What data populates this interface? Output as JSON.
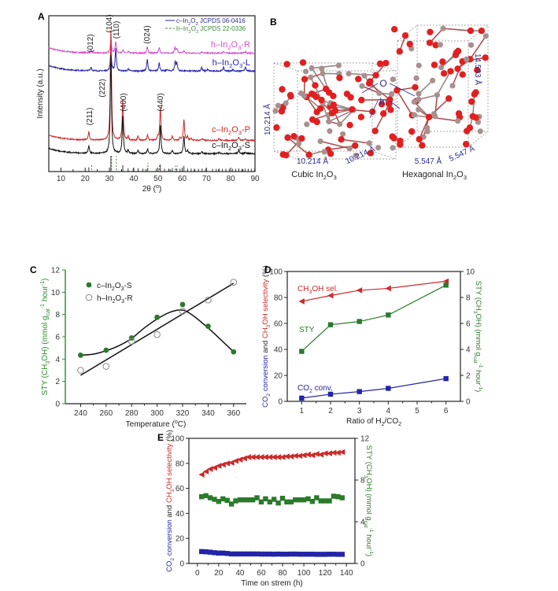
{
  "chart_data": [
    {
      "panel": "A",
      "type": "line",
      "xlabel": "2θ (^{o})",
      "ylabel": "Intensity (a.u.)",
      "xlim": [
        5,
        90
      ],
      "xticks": [
        10,
        20,
        30,
        40,
        50,
        60,
        70,
        80,
        90
      ],
      "legend": {
        "position": "top-right",
        "entries": [
          {
            "label": "c–In_{2}O_{3} JCPDS 06-0416",
            "style": "solid",
            "color": "#2b2b8f"
          },
          {
            "label": "h–In_{2}O_{3} JCPDS 22-0336",
            "style": "dashed",
            "color": "#3a8a3a"
          }
        ]
      },
      "series": [
        {
          "name": "h–In_{2}O_{3}-R",
          "color": "#d24fd2",
          "offset": 7.6,
          "peaks": [
            [
              22.4,
              0.15
            ],
            [
              30.6,
              0.9
            ],
            [
              32.6,
              0.75
            ],
            [
              35.5,
              0.2
            ],
            [
              37.8,
              0.1
            ],
            [
              45.6,
              0.4
            ],
            [
              50.5,
              0.35
            ],
            [
              57.0,
              0.35
            ],
            [
              57.8,
              0.3
            ],
            [
              60.7,
              0.15
            ],
            [
              68.2,
              0.1
            ],
            [
              77.0,
              0.12
            ],
            [
              86.0,
              0.1
            ]
          ]
        },
        {
          "name": "h–In_{2}O_{3}-L",
          "color": "#2424a8",
          "offset": 6.45,
          "peaks": [
            [
              22.4,
              0.25
            ],
            [
              30.6,
              1.3
            ],
            [
              32.6,
              1.45
            ],
            [
              37.8,
              0.15
            ],
            [
              45.6,
              0.75
            ],
            [
              50.5,
              0.55
            ],
            [
              53.8,
              0.1
            ],
            [
              57.1,
              0.6
            ],
            [
              57.8,
              0.5
            ],
            [
              68.0,
              0.25
            ],
            [
              70.5,
              0.1
            ],
            [
              77.0,
              0.25
            ],
            [
              80.8,
              0.1
            ],
            [
              86.0,
              0.25
            ]
          ]
        },
        {
          "name": "c–In_{2}O_{3}-P",
          "color": "#cc2a2a",
          "offset": 2.0,
          "peaks": [
            [
              21.5,
              0.55
            ],
            [
              30.6,
              7.2
            ],
            [
              35.5,
              2.55
            ],
            [
              37.7,
              0.25
            ],
            [
              41.8,
              0.25
            ],
            [
              45.7,
              0.35
            ],
            [
              49.9,
              0.2
            ],
            [
              51.0,
              2.2
            ],
            [
              55.9,
              0.25
            ],
            [
              59.1,
              0.15
            ],
            [
              60.7,
              1.35
            ],
            [
              62.2,
              0.25
            ],
            [
              63.7,
              0.15
            ],
            [
              68.2,
              0.12
            ],
            [
              75.2,
              0.12
            ],
            [
              83.3,
              0.2
            ],
            [
              86.0,
              0.1
            ]
          ]
        },
        {
          "name": "c–In_{2}O_{3}-S",
          "color": "#111111",
          "offset": 1.15,
          "peaks": [
            [
              21.5,
              0.5
            ],
            [
              30.6,
              6.5
            ],
            [
              35.5,
              2.4
            ],
            [
              37.7,
              0.2
            ],
            [
              41.8,
              0.2
            ],
            [
              45.7,
              0.3
            ],
            [
              51.0,
              1.9
            ],
            [
              55.9,
              0.2
            ],
            [
              60.7,
              1.15
            ],
            [
              62.2,
              0.2
            ],
            [
              68.2,
              0.1
            ],
            [
              75.2,
              0.1
            ],
            [
              83.3,
              0.25
            ],
            [
              86.0,
              0.1
            ]
          ]
        }
      ],
      "reference_cubic": [
        21.5,
        30.6,
        35.5,
        37.7,
        39.8,
        41.8,
        43.8,
        45.7,
        49.3,
        51.0,
        52.7,
        54.4,
        55.9,
        57.6,
        59.1,
        60.7,
        62.2,
        63.7,
        65.2,
        66.7,
        68.2,
        69.6,
        72.5,
        74.0,
        75.2,
        76.6,
        78.0,
        79.4,
        80.8,
        82.1,
        83.3,
        84.6,
        85.9,
        87.2,
        88.5,
        89.8
      ],
      "reference_cubic_intensity": [
        0.14,
        1,
        0.3,
        0.06,
        0.05,
        0.08,
        0.05,
        0.1,
        0.04,
        0.35,
        0.04,
        0.05,
        0.08,
        0.03,
        0.04,
        0.25,
        0.05,
        0.05,
        0.03,
        0.03,
        0.05,
        0.03,
        0.03,
        0.03,
        0.05,
        0.03,
        0.03,
        0.03,
        0.03,
        0.03,
        0.06,
        0.03,
        0.04,
        0.03,
        0.03,
        0.03
      ],
      "reference_hexagonal": [
        22.4,
        30.6,
        32.6,
        45.6,
        50.3,
        56.9,
        57.6
      ],
      "reference_hexagonal_intensity": [
        0.25,
        0.9,
        0.85,
        0.35,
        0.3,
        0.15,
        0.15
      ],
      "peak_labels": [
        {
          "text": "(012)",
          "x": 22.4,
          "phase": "h"
        },
        {
          "text": "(104)",
          "x": 30.6,
          "phase": "h"
        },
        {
          "text": "(110)",
          "x": 32.6,
          "phase": "h"
        },
        {
          "text": "(024)",
          "x": 45.6,
          "phase": "h"
        },
        {
          "text": "(211)",
          "x": 21.5,
          "phase": "c"
        },
        {
          "text": "(222)",
          "x": 30.6,
          "phase": "c"
        },
        {
          "text": "(400)",
          "x": 35.5,
          "phase": "c"
        },
        {
          "text": "(440)",
          "x": 51.0,
          "phase": "c"
        }
      ]
    },
    {
      "panel": "C",
      "type": "scatter",
      "xlabel": "Temperature (^{o}C)",
      "ylabel": "STY (CH_{3}OH) (mmol g_{cat}^{-1} hour^{-1})",
      "xlim": [
        228,
        370
      ],
      "ylim": [
        0,
        12
      ],
      "xticks": [
        240,
        260,
        280,
        300,
        320,
        340,
        360
      ],
      "yticks": [
        0,
        2,
        4,
        6,
        8,
        10,
        12
      ],
      "axis_color": "#2a8a2a",
      "legend": {
        "position": "top-left"
      },
      "series": [
        {
          "name": "c–In_{2}O_{3}-S",
          "marker": "filled-circle",
          "color": "#2a7a2a",
          "x": [
            240,
            260,
            280,
            300,
            320,
            340,
            360
          ],
          "y": [
            4.35,
            4.8,
            5.9,
            7.75,
            8.9,
            6.95,
            4.65
          ]
        },
        {
          "name": "h–In_{2}O_{3}-R",
          "marker": "open-circle",
          "color": "#888888",
          "x": [
            240,
            260,
            280,
            300,
            320,
            340,
            360
          ],
          "y": [
            3.0,
            3.35,
            5.6,
            6.2,
            8.3,
            9.3,
            10.9
          ]
        }
      ],
      "fits": [
        {
          "for": "c–In_{2}O_{3}-S",
          "kind": "smooth",
          "x": [
            240,
            250,
            260,
            270,
            280,
            290,
            300,
            310,
            318,
            325,
            340,
            360
          ],
          "y": [
            4.35,
            4.45,
            4.75,
            5.2,
            5.85,
            6.8,
            7.6,
            8.2,
            8.4,
            8.15,
            6.8,
            4.65
          ]
        },
        {
          "for": "h–In_{2}O_{3}-R",
          "kind": "linear",
          "x": [
            240,
            360
          ],
          "y": [
            2.55,
            10.8
          ]
        }
      ]
    },
    {
      "panel": "D",
      "type": "line",
      "xlabel": "Ratio of H_{2}/CO_{2}",
      "ylabel_left": [
        {
          "text": "CO_{2} conversion ",
          "color": "#2424a8"
        },
        {
          "text": "and ",
          "color": "#222222"
        },
        {
          "text": "CH_{3}OH selectivity ",
          "color": "#cc2a2a"
        },
        {
          "text": "(%)",
          "color": "#222222"
        }
      ],
      "ylabel_right": "STY (CH_{3}OH) (mmol g_{cat}^{-1} hour^{-1})",
      "xlim": [
        0.5,
        6.5
      ],
      "ylim_left": [
        0,
        100
      ],
      "ylim_right": [
        0,
        10
      ],
      "xticks": [
        1,
        2,
        3,
        4,
        5,
        6
      ],
      "yticks_left": [
        0,
        20,
        40,
        60,
        80,
        100
      ],
      "yticks_right": [
        0,
        2,
        4,
        6,
        8,
        10
      ],
      "series": [
        {
          "name": "CH_{3}OH sel.",
          "axis": "left",
          "marker": "triangle-left",
          "color": "#cc2a2a",
          "x": [
            1,
            2,
            3,
            4,
            6
          ],
          "y": [
            77,
            81.5,
            85.5,
            87,
            92.5
          ]
        },
        {
          "name": "STY",
          "axis": "right",
          "marker": "square",
          "color": "#2a7a2a",
          "x": [
            1,
            2,
            3,
            4,
            6
          ],
          "y": [
            3.85,
            5.9,
            6.15,
            6.65,
            8.95
          ]
        },
        {
          "name": "CO_{2} conv.",
          "axis": "left",
          "marker": "square",
          "color": "#2424a8",
          "x": [
            1,
            2,
            3,
            4,
            6
          ],
          "y": [
            2.5,
            5.5,
            7.5,
            10,
            17.5
          ]
        }
      ]
    },
    {
      "panel": "E",
      "type": "scatter",
      "xlabel": "Time on strem (h)",
      "ylabel_left": [
        {
          "text": "CO_{2} conversion ",
          "color": "#2424a8"
        },
        {
          "text": "and ",
          "color": "#222222"
        },
        {
          "text": "CH_{3}OH selectivity ",
          "color": "#cc2a2a"
        },
        {
          "text": "(%)",
          "color": "#222222"
        }
      ],
      "ylabel_right": "STY (CH_{3}OH) (mmol g_{cat}^{-1} hour^{-1})",
      "xlim": [
        -8,
        148
      ],
      "ylim_left": [
        0,
        100
      ],
      "ylim_right": [
        0,
        12
      ],
      "xticks": [
        0,
        20,
        40,
        60,
        80,
        100,
        120,
        140
      ],
      "yticks_left": [
        0,
        20,
        40,
        60,
        80,
        100
      ],
      "yticks_right": [
        0,
        4,
        8,
        12
      ],
      "x": [
        4,
        8,
        12,
        16,
        20,
        24,
        28,
        32,
        36,
        40,
        44,
        48,
        52,
        56,
        60,
        64,
        68,
        72,
        76,
        80,
        84,
        88,
        92,
        96,
        100,
        104,
        108,
        112,
        116,
        120,
        124,
        128,
        132,
        136
      ],
      "series": [
        {
          "name": "CH3OH selectivity",
          "axis": "left",
          "marker": "triangle-left",
          "color": "#cc2a2a",
          "y": [
            71,
            73.5,
            75.5,
            76.5,
            78,
            79,
            80,
            80.5,
            82,
            83,
            84,
            85,
            85,
            85,
            85,
            85,
            85,
            85,
            85,
            85,
            85.5,
            85.5,
            86,
            86,
            86.5,
            87,
            86.5,
            87.5,
            87,
            88,
            88,
            88.5,
            88.5,
            89
          ]
        },
        {
          "name": "STY",
          "axis": "right",
          "marker": "square",
          "color": "#2a7a2a",
          "y": [
            6.4,
            6.5,
            6.3,
            6.15,
            5.95,
            6.2,
            6.05,
            5.7,
            6.0,
            6.1,
            6.1,
            6.1,
            6.1,
            6.3,
            5.9,
            6.2,
            5.9,
            6.15,
            5.8,
            6.25,
            5.9,
            5.9,
            6.1,
            6.1,
            6.1,
            6.2,
            5.95,
            6.3,
            6.0,
            6.0,
            6.0,
            6.45,
            6.4,
            6.3
          ]
        },
        {
          "name": "CO2 conversion",
          "axis": "left",
          "marker": "square",
          "color": "#2424a8",
          "y": [
            9.5,
            9.3,
            9.0,
            8.6,
            8.3,
            8.3,
            8.0,
            7.6,
            7.6,
            7.6,
            7.6,
            7.6,
            7.6,
            7.6,
            7.5,
            7.5,
            7.5,
            7.4,
            7.5,
            7.4,
            7.4,
            7.5,
            7.5,
            7.4,
            7.4,
            7.4,
            7.4,
            7.3,
            7.3,
            7.3,
            7.4,
            7.4,
            7.3,
            7.3
          ]
        }
      ]
    }
  ],
  "structures": {
    "panel": "B",
    "cubic": {
      "title": "Cubic In_{2}O_{3}",
      "a": "10.214 Å",
      "b": "10.214 Å",
      "c": "10.214 Å"
    },
    "hexagonal": {
      "title": "Hexagonal In_{2}O_{3}",
      "a": "5.547 Å",
      "b": "5.547 Å",
      "c": "14.583 Å"
    },
    "atom_labels": {
      "oxygen": "O",
      "indium": "In"
    },
    "colors": {
      "oxygen": "#e02020",
      "indium": "#a89090",
      "label": "#2b2b8f"
    }
  },
  "panel_letters": [
    "A",
    "B",
    "C",
    "D",
    "E"
  ]
}
